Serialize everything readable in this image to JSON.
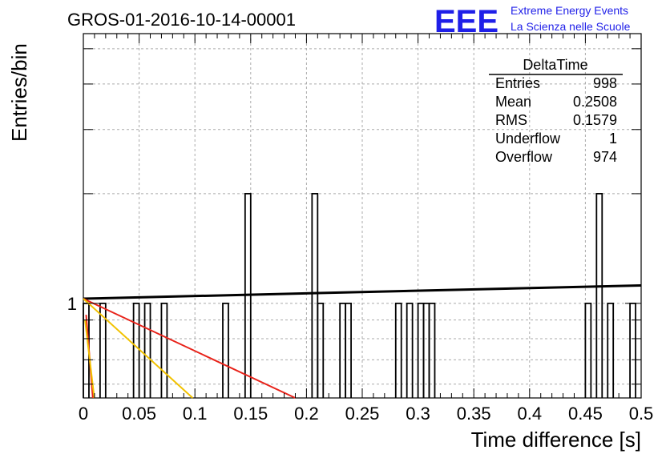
{
  "header": {
    "title": "GROS-01-2016-10-14-00001",
    "brand_logo": "EEE",
    "brand_line1": "Extreme Energy Events",
    "brand_line2": "La Scienza nelle Scuole"
  },
  "stats_box": {
    "title": "DeltaTime",
    "rows": [
      {
        "label": "Entries",
        "value": "998"
      },
      {
        "label": "Mean",
        "value": "0.2508"
      },
      {
        "label": "RMS",
        "value": "0.1579"
      },
      {
        "label": "Underflow",
        "value": "1"
      },
      {
        "label": "Overflow",
        "value": "974"
      }
    ]
  },
  "chart_data": {
    "type": "histogram",
    "xlabel": "Time difference [s]",
    "ylabel": "Entries/bin",
    "xlim": [
      0,
      0.5
    ],
    "ylim": [
      0.55,
      5.5
    ],
    "yscale": "log",
    "grid": true,
    "x_ticks": [
      "0",
      "0.05",
      "0.1",
      "0.15",
      "0.2",
      "0.25",
      "0.3",
      "0.35",
      "0.4",
      "0.45",
      "0.5"
    ],
    "y_tick_labels": [
      "1"
    ],
    "bin_width": 0.005,
    "bins": [
      {
        "x": 0.0,
        "y": 1
      },
      {
        "x": 0.015,
        "y": 1
      },
      {
        "x": 0.045,
        "y": 1
      },
      {
        "x": 0.055,
        "y": 1
      },
      {
        "x": 0.07,
        "y": 1
      },
      {
        "x": 0.125,
        "y": 1
      },
      {
        "x": 0.145,
        "y": 2
      },
      {
        "x": 0.205,
        "y": 2
      },
      {
        "x": 0.21,
        "y": 1
      },
      {
        "x": 0.23,
        "y": 1
      },
      {
        "x": 0.235,
        "y": 1
      },
      {
        "x": 0.28,
        "y": 1
      },
      {
        "x": 0.29,
        "y": 1
      },
      {
        "x": 0.3,
        "y": 1
      },
      {
        "x": 0.305,
        "y": 1
      },
      {
        "x": 0.31,
        "y": 1
      },
      {
        "x": 0.45,
        "y": 1
      },
      {
        "x": 0.46,
        "y": 2
      },
      {
        "x": 0.47,
        "y": 1
      },
      {
        "x": 0.49,
        "y": 1
      }
    ],
    "fit_lines": [
      {
        "color": "#000000",
        "x": [
          0.0,
          0.5
        ],
        "y": [
          1.03,
          1.12
        ]
      },
      {
        "color": "#e8231a",
        "x": [
          0.0,
          0.19
        ],
        "y": [
          1.03,
          0.55
        ]
      },
      {
        "color": "#f2c200",
        "x": [
          0.0,
          0.098
        ],
        "y": [
          1.03,
          0.55
        ]
      },
      {
        "color": "#e8231a",
        "x": [
          0.0025,
          0.0085
        ],
        "y": [
          0.93,
          0.55
        ]
      },
      {
        "color": "#f2c200",
        "x": [
          0.0015,
          0.0098
        ],
        "y": [
          0.9,
          0.55
        ]
      }
    ]
  }
}
